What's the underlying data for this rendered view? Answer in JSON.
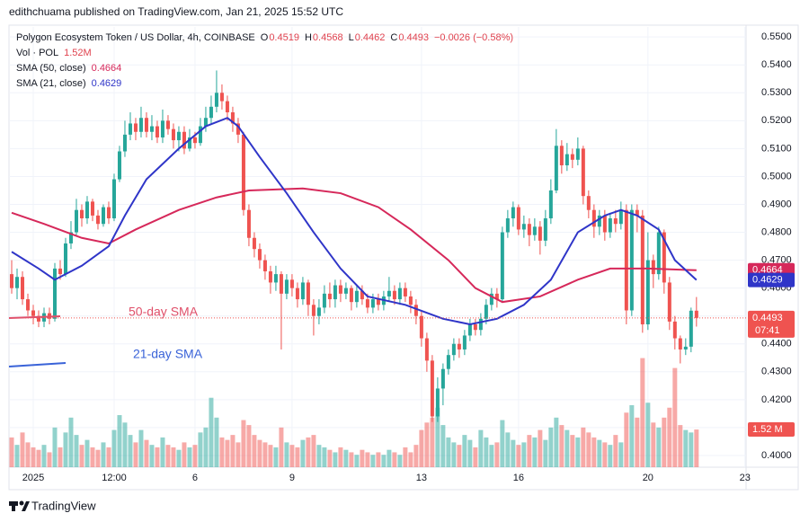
{
  "header": {
    "attribution": "edithchuama published on TradingView.com, Jan 21, 2025 15:52 UTC",
    "symbol": "Polygon Ecosystem Token / US Dollar, 4h, COINBASE",
    "ohlc_keys": [
      "O",
      "H",
      "L",
      "C"
    ],
    "change": "−0.0026 (−0.58%)",
    "vol_title": "Vol · POL",
    "countdown": "07:41"
  },
  "footer": {
    "brand": "TradingView"
  },
  "chart_data": {
    "type": "candlestick",
    "up_color": "#26a69a",
    "down_color": "#ef5350",
    "grid": true,
    "xlim": [
      -0.5,
      136.2
    ],
    "xticks": [
      {
        "value": 4,
        "label": "2025"
      },
      {
        "value": 19,
        "label": "12:00"
      },
      {
        "value": 34,
        "label": "6"
      },
      {
        "value": 52,
        "label": "9"
      },
      {
        "value": 76,
        "label": "13"
      },
      {
        "value": 94,
        "label": "16"
      },
      {
        "value": 118,
        "label": "20"
      },
      {
        "value": 136,
        "label": "23"
      }
    ],
    "ylim": [
      0.3958,
      0.5536
    ],
    "yticks": [
      {
        "value": 0.4,
        "label": "0.4000"
      },
      {
        "value": 0.41,
        "label": "0.4100"
      },
      {
        "value": 0.42,
        "label": "0.4200"
      },
      {
        "value": 0.43,
        "label": "0.4300"
      },
      {
        "value": 0.44,
        "label": "0.4400"
      },
      {
        "value": 0.45,
        "label": "0.4500"
      },
      {
        "value": 0.46,
        "label": "0.4600"
      },
      {
        "value": 0.47,
        "label": "0.4700"
      },
      {
        "value": 0.48,
        "label": "0.4800"
      },
      {
        "value": 0.49,
        "label": "0.4900"
      },
      {
        "value": 0.5,
        "label": "0.5000"
      },
      {
        "value": 0.51,
        "label": "0.5100"
      },
      {
        "value": 0.52,
        "label": "0.5200"
      },
      {
        "value": 0.53,
        "label": "0.5300"
      },
      {
        "value": 0.54,
        "label": "0.5400"
      },
      {
        "value": 0.55,
        "label": "0.5500"
      }
    ],
    "open": [
      0.465,
      0.46,
      0.464,
      0.456,
      0.452,
      0.45,
      0.448,
      0.451,
      0.449,
      0.467,
      0.465,
      0.476,
      0.48,
      0.488,
      0.485,
      0.491,
      0.486,
      0.483,
      0.489,
      0.485,
      0.499,
      0.509,
      0.515,
      0.519,
      0.516,
      0.521,
      0.516,
      0.518,
      0.514,
      0.52,
      0.517,
      0.513,
      0.516,
      0.51,
      0.514,
      0.512,
      0.518,
      0.521,
      0.525,
      0.53,
      0.527,
      0.523,
      0.519,
      0.515,
      0.488,
      0.478,
      0.474,
      0.47,
      0.466,
      0.462,
      0.465,
      0.458,
      0.463,
      0.46,
      0.456,
      0.462,
      0.454,
      0.45,
      0.453,
      0.458,
      0.456,
      0.461,
      0.458,
      0.46,
      0.455,
      0.459,
      0.456,
      0.453,
      0.456,
      0.454,
      0.457,
      0.459,
      0.456,
      0.46,
      0.457,
      0.454,
      0.45,
      0.442,
      0.434,
      0.414,
      0.424,
      0.431,
      0.436,
      0.44,
      0.438,
      0.443,
      0.447,
      0.445,
      0.449,
      0.454,
      0.458,
      0.456,
      0.48,
      0.485,
      0.489,
      0.481,
      0.483,
      0.479,
      0.482,
      0.477,
      0.485,
      0.495,
      0.511,
      0.504,
      0.508,
      0.506,
      0.51,
      0.493,
      0.488,
      0.482,
      0.486,
      0.48,
      0.485,
      0.483,
      0.488,
      0.452,
      0.488,
      0.486,
      0.447,
      0.47,
      0.465,
      0.48,
      0.462,
      0.448,
      0.442,
      0.438,
      0.439,
      0.4519
    ],
    "high": [
      0.47,
      0.467,
      0.466,
      0.458,
      0.454,
      0.452,
      0.453,
      0.453,
      0.469,
      0.47,
      0.478,
      0.484,
      0.492,
      0.49,
      0.493,
      0.492,
      0.488,
      0.49,
      0.491,
      0.501,
      0.511,
      0.52,
      0.523,
      0.521,
      0.525,
      0.523,
      0.522,
      0.52,
      0.524,
      0.522,
      0.519,
      0.518,
      0.518,
      0.517,
      0.516,
      0.521,
      0.525,
      0.529,
      0.538,
      0.533,
      0.529,
      0.525,
      0.521,
      0.516,
      0.49,
      0.48,
      0.476,
      0.472,
      0.468,
      0.468,
      0.466,
      0.465,
      0.465,
      0.462,
      0.464,
      0.463,
      0.456,
      0.456,
      0.461,
      0.462,
      0.463,
      0.463,
      0.462,
      0.461,
      0.461,
      0.461,
      0.458,
      0.458,
      0.458,
      0.459,
      0.464,
      0.461,
      0.462,
      0.462,
      0.459,
      0.456,
      0.452,
      0.444,
      0.436,
      0.428,
      0.433,
      0.438,
      0.442,
      0.442,
      0.445,
      0.449,
      0.449,
      0.451,
      0.456,
      0.46,
      0.46,
      0.482,
      0.488,
      0.491,
      0.49,
      0.486,
      0.485,
      0.485,
      0.484,
      0.488,
      0.499,
      0.517,
      0.513,
      0.512,
      0.51,
      0.514,
      0.511,
      0.495,
      0.49,
      0.488,
      0.488,
      0.487,
      0.488,
      0.491,
      0.49,
      0.49,
      0.49,
      0.488,
      0.48,
      0.472,
      0.482,
      0.481,
      0.464,
      0.45,
      0.443,
      0.442,
      0.453,
      0.4568
    ],
    "low": [
      0.458,
      0.456,
      0.454,
      0.45,
      0.447,
      0.446,
      0.446,
      0.447,
      0.448,
      0.463,
      0.464,
      0.474,
      0.479,
      0.482,
      0.483,
      0.484,
      0.481,
      0.482,
      0.483,
      0.484,
      0.498,
      0.507,
      0.513,
      0.513,
      0.514,
      0.514,
      0.513,
      0.512,
      0.512,
      0.515,
      0.51,
      0.509,
      0.508,
      0.509,
      0.51,
      0.511,
      0.516,
      0.519,
      0.523,
      0.524,
      0.52,
      0.516,
      0.512,
      0.486,
      0.475,
      0.471,
      0.467,
      0.463,
      0.458,
      0.459,
      0.438,
      0.456,
      0.457,
      0.453,
      0.454,
      0.45,
      0.443,
      0.447,
      0.451,
      0.453,
      0.453,
      0.455,
      0.456,
      0.452,
      0.453,
      0.454,
      0.451,
      0.451,
      0.452,
      0.452,
      0.455,
      0.454,
      0.454,
      0.455,
      0.451,
      0.447,
      0.439,
      0.43,
      0.412,
      0.412,
      0.418,
      0.429,
      0.434,
      0.435,
      0.436,
      0.441,
      0.443,
      0.443,
      0.447,
      0.452,
      0.453,
      0.455,
      0.478,
      0.482,
      0.479,
      0.478,
      0.475,
      0.477,
      0.472,
      0.475,
      0.483,
      0.494,
      0.501,
      0.502,
      0.503,
      0.504,
      0.49,
      0.485,
      0.478,
      0.479,
      0.477,
      0.478,
      0.48,
      0.481,
      0.447,
      0.45,
      0.48,
      0.444,
      0.445,
      0.46,
      0.463,
      0.458,
      0.445,
      0.438,
      0.433,
      0.436,
      0.437,
      0.4462
    ],
    "close": [
      0.46,
      0.464,
      0.456,
      0.452,
      0.45,
      0.448,
      0.451,
      0.449,
      0.467,
      0.465,
      0.476,
      0.48,
      0.488,
      0.485,
      0.491,
      0.486,
      0.483,
      0.489,
      0.485,
      0.499,
      0.509,
      0.515,
      0.519,
      0.516,
      0.521,
      0.516,
      0.518,
      0.514,
      0.52,
      0.517,
      0.513,
      0.516,
      0.51,
      0.514,
      0.512,
      0.518,
      0.521,
      0.525,
      0.53,
      0.527,
      0.523,
      0.519,
      0.515,
      0.488,
      0.478,
      0.474,
      0.47,
      0.466,
      0.462,
      0.465,
      0.458,
      0.463,
      0.46,
      0.456,
      0.462,
      0.454,
      0.45,
      0.453,
      0.458,
      0.456,
      0.461,
      0.458,
      0.46,
      0.455,
      0.459,
      0.456,
      0.453,
      0.456,
      0.454,
      0.457,
      0.459,
      0.456,
      0.46,
      0.457,
      0.454,
      0.45,
      0.442,
      0.434,
      0.414,
      0.424,
      0.431,
      0.436,
      0.44,
      0.438,
      0.443,
      0.447,
      0.445,
      0.449,
      0.454,
      0.458,
      0.456,
      0.48,
      0.485,
      0.489,
      0.481,
      0.483,
      0.479,
      0.482,
      0.477,
      0.485,
      0.495,
      0.511,
      0.504,
      0.508,
      0.506,
      0.51,
      0.493,
      0.488,
      0.482,
      0.486,
      0.48,
      0.485,
      0.483,
      0.488,
      0.452,
      0.488,
      0.486,
      0.447,
      0.47,
      0.465,
      0.48,
      0.462,
      0.448,
      0.442,
      0.438,
      0.439,
      0.4519,
      0.4493
    ],
    "volume": {
      "vlim": [
        0,
        5
      ],
      "axis_label": "1.52 M",
      "legend_label": "1.52M",
      "values": [
        1.2,
        0.9,
        1.4,
        1.0,
        0.8,
        0.7,
        0.9,
        0.6,
        1.6,
        0.8,
        1.4,
        2.0,
        1.3,
        0.9,
        1.1,
        0.8,
        0.7,
        1.0,
        0.8,
        1.5,
        2.1,
        1.8,
        1.3,
        1.0,
        1.5,
        1.1,
        0.9,
        0.8,
        1.2,
        0.9,
        0.8,
        0.7,
        1.0,
        0.8,
        0.9,
        1.4,
        1.6,
        2.8,
        2.0,
        1.2,
        1.1,
        1.3,
        1.0,
        1.9,
        1.7,
        1.3,
        1.1,
        1.0,
        0.9,
        0.8,
        1.6,
        1.0,
        0.9,
        0.8,
        1.1,
        1.2,
        1.3,
        0.9,
        0.8,
        0.7,
        0.6,
        0.8,
        0.7,
        0.6,
        0.5,
        0.7,
        0.6,
        0.5,
        0.6,
        0.5,
        0.7,
        0.6,
        0.5,
        0.8,
        0.6,
        0.9,
        1.5,
        1.8,
        2.0,
        2.4,
        1.7,
        1.2,
        1.0,
        0.9,
        1.3,
        1.1,
        0.8,
        1.5,
        1.2,
        0.9,
        1.0,
        1.9,
        1.4,
        1.1,
        0.9,
        1.0,
        1.3,
        1.2,
        1.5,
        1.1,
        1.6,
        2.0,
        1.7,
        1.5,
        1.3,
        1.2,
        1.6,
        1.4,
        1.2,
        1.1,
        1.0,
        0.9,
        1.3,
        1.0,
        2.2,
        2.5,
        2.0,
        4.4,
        2.6,
        1.8,
        1.6,
        2.0,
        2.4,
        4.0,
        1.7,
        1.5,
        1.4,
        1.52
      ]
    },
    "series": [
      {
        "name": "SMA (50, close)",
        "color": "#d6285a",
        "x": [
          0,
          6,
          13,
          18,
          23,
          31,
          38,
          44,
          54,
          61,
          68,
          74,
          81,
          86,
          91,
          98,
          105,
          111,
          118,
          127
        ],
        "values": [
          0.487,
          0.483,
          0.478,
          0.476,
          0.481,
          0.488,
          0.4925,
          0.495,
          0.4957,
          0.494,
          0.489,
          0.481,
          0.47,
          0.46,
          0.455,
          0.457,
          0.463,
          0.467,
          0.467,
          0.4664
        ]
      },
      {
        "name": "SMA (21, close)",
        "color": "#2f35c8",
        "x": [
          0,
          5,
          8,
          13,
          18,
          21,
          25,
          31,
          36,
          40,
          42,
          46,
          51,
          56,
          61,
          66,
          73,
          80,
          85,
          90,
          95,
          100,
          105,
          110,
          113,
          116,
          120,
          123,
          127
        ],
        "values": [
          0.473,
          0.467,
          0.463,
          0.468,
          0.475,
          0.486,
          0.499,
          0.51,
          0.518,
          0.521,
          0.518,
          0.507,
          0.494,
          0.48,
          0.467,
          0.457,
          0.454,
          0.449,
          0.447,
          0.449,
          0.454,
          0.463,
          0.48,
          0.486,
          0.488,
          0.486,
          0.481,
          0.47,
          0.4629
        ]
      }
    ],
    "annotations": [
      {
        "text": "50-day SMA",
        "color": "#e0506a"
      },
      {
        "text": "21-day SMA",
        "color": "#3a63d8"
      }
    ]
  }
}
